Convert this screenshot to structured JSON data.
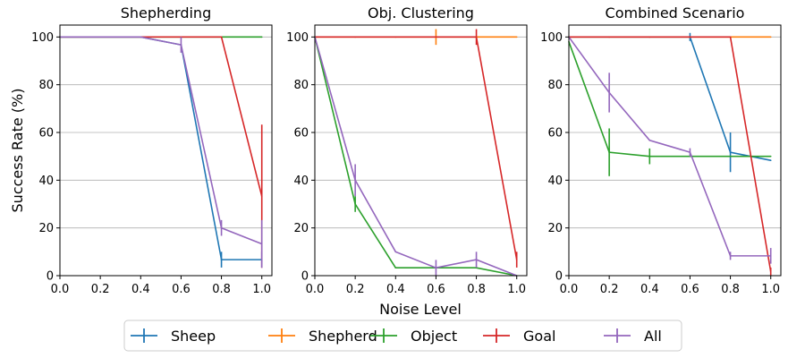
{
  "figure": {
    "xlabel": "Noise Level",
    "ylabel": "Success Rate (%)",
    "legend_position": "bottom-center"
  },
  "series_styles": [
    {
      "name": "Sheep",
      "color": "#1f77b4"
    },
    {
      "name": "Shepherd",
      "color": "#ff7f0e"
    },
    {
      "name": "Object",
      "color": "#2ca02c"
    },
    {
      "name": "Goal",
      "color": "#d62728"
    },
    {
      "name": "All",
      "color": "#9467bd"
    }
  ],
  "chart_data": [
    {
      "type": "line",
      "title": "Shepherding",
      "xlabel": "",
      "ylabel": "Success Rate (%)",
      "xlim": [
        0,
        1.05
      ],
      "ylim": [
        0,
        105
      ],
      "xticks": [
        "0.0",
        "0.2",
        "0.4",
        "0.6",
        "0.8",
        "1.0"
      ],
      "yticks": [
        "0",
        "20",
        "40",
        "60",
        "80",
        "100"
      ],
      "grid": "y",
      "series": [
        {
          "name": "Sheep",
          "x": [
            0,
            0.4,
            0.6,
            0.8,
            1.0
          ],
          "y": [
            100,
            100,
            96.7,
            6.7,
            6.7
          ],
          "err": [
            0,
            0,
            0,
            3.3,
            3.3
          ]
        },
        {
          "name": "Object",
          "x": [
            0,
            0.4,
            0.6,
            0.8,
            1.0
          ],
          "y": [
            100,
            100,
            100,
            100,
            100
          ],
          "err": [
            0,
            0,
            0,
            0,
            0
          ]
        },
        {
          "name": "Goal",
          "x": [
            0,
            0.4,
            0.6,
            0.8,
            1.0
          ],
          "y": [
            100,
            100,
            100,
            100,
            33.3
          ],
          "err": [
            0,
            0,
            0,
            0,
            30
          ]
        },
        {
          "name": "All",
          "x": [
            0,
            0.4,
            0.6,
            0.8,
            1.0
          ],
          "y": [
            100,
            100,
            96.7,
            20,
            13.3
          ],
          "err": [
            0,
            0,
            3.3,
            3.3,
            10
          ]
        }
      ]
    },
    {
      "type": "line",
      "title": "Obj. Clustering",
      "xlabel": "Noise Level",
      "ylabel": "",
      "xlim": [
        0,
        1.05
      ],
      "ylim": [
        0,
        105
      ],
      "xticks": [
        "0.0",
        "0.2",
        "0.4",
        "0.6",
        "0.8",
        "1.0"
      ],
      "yticks": [
        "0",
        "20",
        "40",
        "60",
        "80",
        "100"
      ],
      "grid": "y",
      "series": [
        {
          "name": "Shepherd",
          "x": [
            0,
            0.2,
            0.4,
            0.6,
            0.8,
            1.0
          ],
          "y": [
            100,
            100,
            100,
            100,
            100,
            100
          ],
          "err": [
            0,
            0,
            0,
            3.3,
            0,
            0
          ]
        },
        {
          "name": "Object",
          "x": [
            0,
            0.2,
            0.4,
            0.6,
            0.8,
            1.0
          ],
          "y": [
            100,
            30,
            3.3,
            3.3,
            3.3,
            0
          ],
          "err": [
            0,
            3.3,
            0,
            0,
            0,
            0
          ]
        },
        {
          "name": "Goal",
          "x": [
            0,
            0.2,
            0.4,
            0.6,
            0.8,
            1.0
          ],
          "y": [
            100,
            100,
            100,
            100,
            100,
            6.7
          ],
          "err": [
            0,
            0,
            0,
            0,
            3.3,
            3.3
          ]
        },
        {
          "name": "All",
          "x": [
            0,
            0.2,
            0.4,
            0.6,
            0.8,
            1.0
          ],
          "y": [
            100,
            40,
            10,
            3.3,
            6.7,
            0
          ],
          "err": [
            0,
            6.7,
            0,
            3.3,
            3.3,
            0
          ]
        }
      ]
    },
    {
      "type": "line",
      "title": "Combined Scenario",
      "xlabel": "",
      "ylabel": "",
      "xlim": [
        0,
        1.05
      ],
      "ylim": [
        0,
        105
      ],
      "xticks": [
        "0.0",
        "0.2",
        "0.4",
        "0.6",
        "0.8",
        "1.0"
      ],
      "yticks": [
        "0",
        "20",
        "40",
        "60",
        "80",
        "100"
      ],
      "grid": "y",
      "series": [
        {
          "name": "Sheep",
          "x": [
            0,
            0.2,
            0.4,
            0.6,
            0.8,
            1.0
          ],
          "y": [
            100,
            100,
            100,
            100,
            51.7,
            48.3
          ],
          "err": [
            0,
            0,
            0,
            1.7,
            8.3,
            0
          ]
        },
        {
          "name": "Shepherd",
          "x": [
            0,
            0.2,
            0.4,
            0.6,
            0.8,
            1.0
          ],
          "y": [
            100,
            100,
            100,
            100,
            100,
            100
          ],
          "err": [
            0,
            0,
            0,
            0,
            0,
            0
          ]
        },
        {
          "name": "Object",
          "x": [
            0,
            0.2,
            0.4,
            0.6,
            0.8,
            1.0
          ],
          "y": [
            98,
            51.7,
            50,
            50,
            50,
            50
          ],
          "err": [
            0,
            10,
            3.3,
            0,
            0,
            0
          ]
        },
        {
          "name": "Goal",
          "x": [
            0,
            0.2,
            0.4,
            0.6,
            0.8,
            1.0
          ],
          "y": [
            100,
            100,
            100,
            100,
            100,
            1.7
          ],
          "err": [
            0,
            0,
            0,
            0,
            0,
            1.7
          ]
        },
        {
          "name": "All",
          "x": [
            0,
            0.2,
            0.4,
            0.6,
            0.8,
            1.0
          ],
          "y": [
            100,
            76.7,
            56.7,
            51.7,
            8.3,
            8.3
          ],
          "err": [
            0,
            8.3,
            0,
            1.7,
            1.7,
            3.3
          ]
        }
      ]
    }
  ]
}
